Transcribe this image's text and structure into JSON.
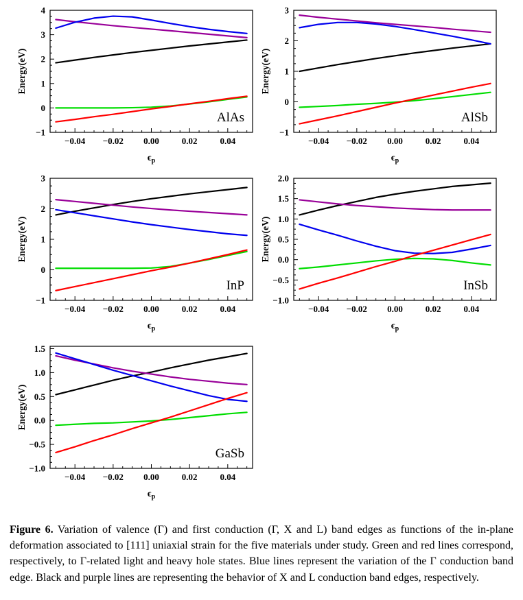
{
  "figure": {
    "caption_label": "Figure 6.",
    "caption_text": " Variation of valence (Γ) and first conduction (Γ, X and L) band edges as functions of the in-plane deformation associated to [111] uniaxial strain for the five materials under study. Green and red lines correspond, respectively, to Γ-related light and heavy hole states. Blue lines represent the variation of the Γ conduction band edge. Black and purple lines are representing the behavior of X and L conduction band edges, respectively."
  },
  "colors": {
    "x_conduction": "#000000",
    "l_conduction": "#990099",
    "gamma_conduction": "#0000ee",
    "gamma_light_hole": "#00dd00",
    "gamma_heavy_hole": "#ff0000"
  },
  "chart_data": [
    {
      "type": "line",
      "title": "AlAs",
      "xlabel": "ϵ_p",
      "ylabel": "Energy(eV)",
      "xlim": [
        -0.053,
        0.053
      ],
      "ylim": [
        -1,
        4
      ],
      "grid": false,
      "legend": "none",
      "xtick_values": [
        -0.04,
        -0.02,
        0,
        0.02,
        0.04
      ],
      "xtick_labels": [
        "−0.04",
        "−0.02",
        "0.00",
        "0.02",
        "0.04"
      ],
      "ytick_values": [
        -1,
        0,
        1,
        2,
        3,
        4
      ],
      "ytick_labels": [
        "−1",
        "0",
        "1",
        "2",
        "3",
        "4"
      ],
      "x": [
        -0.05,
        -0.04,
        -0.03,
        -0.02,
        -0.01,
        0,
        0.01,
        0.02,
        0.03,
        0.04,
        0.05
      ],
      "series": [
        {
          "name": "x-conduction-band",
          "color": "#000000",
          "values": [
            1.85,
            1.96,
            2.07,
            2.17,
            2.27,
            2.36,
            2.45,
            2.54,
            2.62,
            2.7,
            2.78
          ]
        },
        {
          "name": "l-conduction-band",
          "color": "#990099",
          "values": [
            3.62,
            3.53,
            3.45,
            3.37,
            3.3,
            3.23,
            3.16,
            3.09,
            3.02,
            2.95,
            2.88
          ]
        },
        {
          "name": "gamma-conduction-band",
          "color": "#0000ee",
          "values": [
            3.27,
            3.51,
            3.68,
            3.76,
            3.73,
            3.6,
            3.46,
            3.33,
            3.22,
            3.13,
            3.05
          ]
        },
        {
          "name": "gamma-light-hole",
          "color": "#00dd00",
          "values": [
            0.0,
            0.0,
            0.0,
            0.0,
            0.01,
            0.03,
            0.08,
            0.16,
            0.25,
            0.35,
            0.45
          ]
        },
        {
          "name": "gamma-heavy-hole",
          "color": "#ff0000",
          "values": [
            -0.57,
            -0.47,
            -0.36,
            -0.26,
            -0.15,
            -0.04,
            0.06,
            0.17,
            0.27,
            0.38,
            0.48
          ]
        }
      ]
    },
    {
      "type": "line",
      "title": "AlSb",
      "xlabel": "ϵ_p",
      "ylabel": "Energy(eV)",
      "xlim": [
        -0.053,
        0.053
      ],
      "ylim": [
        -1,
        3
      ],
      "grid": false,
      "legend": "none",
      "xtick_values": [
        -0.04,
        -0.02,
        0,
        0.02,
        0.04
      ],
      "xtick_labels": [
        "−0.04",
        "−0.02",
        "0.00",
        "0.02",
        "0.04"
      ],
      "ytick_values": [
        -1,
        0,
        1,
        2,
        3
      ],
      "ytick_labels": [
        "−1",
        "0",
        "1",
        "2",
        "3"
      ],
      "x": [
        -0.05,
        -0.04,
        -0.03,
        -0.02,
        -0.01,
        0,
        0.01,
        0.02,
        0.03,
        0.04,
        0.05
      ],
      "series": [
        {
          "name": "x-conduction-band",
          "color": "#000000",
          "values": [
            1.0,
            1.11,
            1.22,
            1.32,
            1.42,
            1.51,
            1.6,
            1.68,
            1.76,
            1.83,
            1.9
          ]
        },
        {
          "name": "l-conduction-band",
          "color": "#990099",
          "values": [
            2.84,
            2.77,
            2.71,
            2.65,
            2.59,
            2.54,
            2.49,
            2.44,
            2.38,
            2.33,
            2.28
          ]
        },
        {
          "name": "gamma-conduction-band",
          "color": "#0000ee",
          "values": [
            2.43,
            2.54,
            2.6,
            2.6,
            2.55,
            2.47,
            2.37,
            2.26,
            2.15,
            2.03,
            1.9
          ]
        },
        {
          "name": "gamma-light-hole",
          "color": "#00dd00",
          "values": [
            -0.18,
            -0.15,
            -0.12,
            -0.08,
            -0.05,
            -0.01,
            0.04,
            0.1,
            0.17,
            0.24,
            0.31
          ]
        },
        {
          "name": "gamma-heavy-hole",
          "color": "#ff0000",
          "values": [
            -0.72,
            -0.59,
            -0.46,
            -0.32,
            -0.18,
            -0.04,
            0.09,
            0.22,
            0.35,
            0.48,
            0.6
          ]
        }
      ]
    },
    {
      "type": "line",
      "title": "InP",
      "xlabel": "ϵ_p",
      "ylabel": "Energy(eV)",
      "xlim": [
        -0.053,
        0.053
      ],
      "ylim": [
        -1,
        3
      ],
      "grid": false,
      "legend": "none",
      "xtick_values": [
        -0.04,
        -0.02,
        0,
        0.02,
        0.04
      ],
      "xtick_labels": [
        "−0.04",
        "−0.02",
        "0.00",
        "0.02",
        "0.04"
      ],
      "ytick_values": [
        -1,
        0,
        1,
        2,
        3
      ],
      "ytick_labels": [
        "−1",
        "0",
        "1",
        "2",
        "3"
      ],
      "x": [
        -0.05,
        -0.04,
        -0.03,
        -0.02,
        -0.01,
        0,
        0.01,
        0.02,
        0.03,
        0.04,
        0.05
      ],
      "series": [
        {
          "name": "x-conduction-band",
          "color": "#000000",
          "values": [
            1.8,
            1.92,
            2.03,
            2.14,
            2.24,
            2.33,
            2.41,
            2.49,
            2.56,
            2.63,
            2.7
          ]
        },
        {
          "name": "l-conduction-band",
          "color": "#990099",
          "values": [
            2.3,
            2.24,
            2.18,
            2.12,
            2.06,
            2.01,
            1.96,
            1.92,
            1.88,
            1.84,
            1.8
          ]
        },
        {
          "name": "gamma-conduction-band",
          "color": "#0000ee",
          "values": [
            1.97,
            1.87,
            1.77,
            1.67,
            1.57,
            1.48,
            1.4,
            1.32,
            1.25,
            1.18,
            1.13
          ]
        },
        {
          "name": "gamma-light-hole",
          "color": "#00dd00",
          "values": [
            0.05,
            0.05,
            0.05,
            0.05,
            0.05,
            0.06,
            0.11,
            0.22,
            0.34,
            0.47,
            0.6
          ]
        },
        {
          "name": "gamma-heavy-hole",
          "color": "#ff0000",
          "values": [
            -0.68,
            -0.55,
            -0.42,
            -0.29,
            -0.16,
            -0.03,
            0.09,
            0.22,
            0.36,
            0.5,
            0.65
          ]
        }
      ]
    },
    {
      "type": "line",
      "title": "InSb",
      "xlabel": "ϵ_p",
      "ylabel": "Energy(eV)",
      "xlim": [
        -0.053,
        0.053
      ],
      "ylim": [
        -1,
        2
      ],
      "grid": false,
      "legend": "none",
      "xtick_values": [
        -0.04,
        -0.02,
        0,
        0.02,
        0.04
      ],
      "xtick_labels": [
        "−0.04",
        "−0.02",
        "0.00",
        "0.02",
        "0.04"
      ],
      "ytick_values": [
        -1,
        -0.5,
        0,
        0.5,
        1,
        1.5,
        2
      ],
      "ytick_labels": [
        "−1.0",
        "−0.5",
        "0.0",
        "0.5",
        "1.0",
        "1.5",
        "2.0"
      ],
      "x": [
        -0.05,
        -0.04,
        -0.03,
        -0.02,
        -0.01,
        0,
        0.01,
        0.02,
        0.03,
        0.04,
        0.05
      ],
      "series": [
        {
          "name": "x-conduction-band",
          "color": "#000000",
          "values": [
            1.1,
            1.22,
            1.33,
            1.43,
            1.53,
            1.61,
            1.68,
            1.74,
            1.8,
            1.84,
            1.88
          ]
        },
        {
          "name": "l-conduction-band",
          "color": "#990099",
          "values": [
            1.47,
            1.42,
            1.37,
            1.33,
            1.3,
            1.27,
            1.25,
            1.23,
            1.22,
            1.22,
            1.22
          ]
        },
        {
          "name": "gamma-conduction-band",
          "color": "#0000ee",
          "values": [
            0.87,
            0.73,
            0.6,
            0.46,
            0.33,
            0.22,
            0.16,
            0.15,
            0.18,
            0.26,
            0.35
          ]
        },
        {
          "name": "gamma-light-hole",
          "color": "#00dd00",
          "values": [
            -0.22,
            -0.18,
            -0.13,
            -0.08,
            -0.03,
            0.01,
            0.03,
            0.02,
            -0.02,
            -0.08,
            -0.13
          ]
        },
        {
          "name": "gamma-heavy-hole",
          "color": "#ff0000",
          "values": [
            -0.72,
            -0.58,
            -0.45,
            -0.31,
            -0.17,
            -0.04,
            0.1,
            0.23,
            0.36,
            0.49,
            0.62
          ]
        }
      ]
    },
    {
      "type": "line",
      "title": "GaSb",
      "xlabel": "ϵ_p",
      "ylabel": "Energy(eV)",
      "xlim": [
        -0.053,
        0.053
      ],
      "ylim": [
        -1,
        1.55
      ],
      "grid": false,
      "legend": "none",
      "xtick_values": [
        -0.04,
        -0.02,
        0,
        0.02,
        0.04
      ],
      "xtick_labels": [
        "−0.04",
        "−0.02",
        "0.00",
        "0.02",
        "0.04"
      ],
      "ytick_values": [
        -1,
        -0.5,
        0,
        0.5,
        1,
        1.5
      ],
      "ytick_labels": [
        "−1.0",
        "−0.5",
        "0.0",
        "0.5",
        "1.0",
        "1.5"
      ],
      "x": [
        -0.05,
        -0.04,
        -0.03,
        -0.02,
        -0.01,
        0,
        0.01,
        0.02,
        0.03,
        0.04,
        0.05
      ],
      "series": [
        {
          "name": "x-conduction-band",
          "color": "#000000",
          "values": [
            0.54,
            0.64,
            0.74,
            0.84,
            0.93,
            1.01,
            1.1,
            1.18,
            1.26,
            1.33,
            1.4
          ]
        },
        {
          "name": "l-conduction-band",
          "color": "#990099",
          "values": [
            1.35,
            1.26,
            1.18,
            1.1,
            1.03,
            0.97,
            0.91,
            0.86,
            0.82,
            0.78,
            0.75
          ]
        },
        {
          "name": "gamma-conduction-band",
          "color": "#0000ee",
          "values": [
            1.41,
            1.29,
            1.17,
            1.05,
            0.94,
            0.83,
            0.72,
            0.62,
            0.52,
            0.44,
            0.4
          ]
        },
        {
          "name": "gamma-light-hole",
          "color": "#00dd00",
          "values": [
            -0.1,
            -0.08,
            -0.06,
            -0.05,
            -0.03,
            -0.01,
            0.02,
            0.06,
            0.1,
            0.14,
            0.17
          ]
        },
        {
          "name": "gamma-heavy-hole",
          "color": "#ff0000",
          "values": [
            -0.67,
            -0.55,
            -0.42,
            -0.3,
            -0.17,
            -0.05,
            0.07,
            0.2,
            0.33,
            0.46,
            0.58
          ]
        }
      ]
    }
  ]
}
